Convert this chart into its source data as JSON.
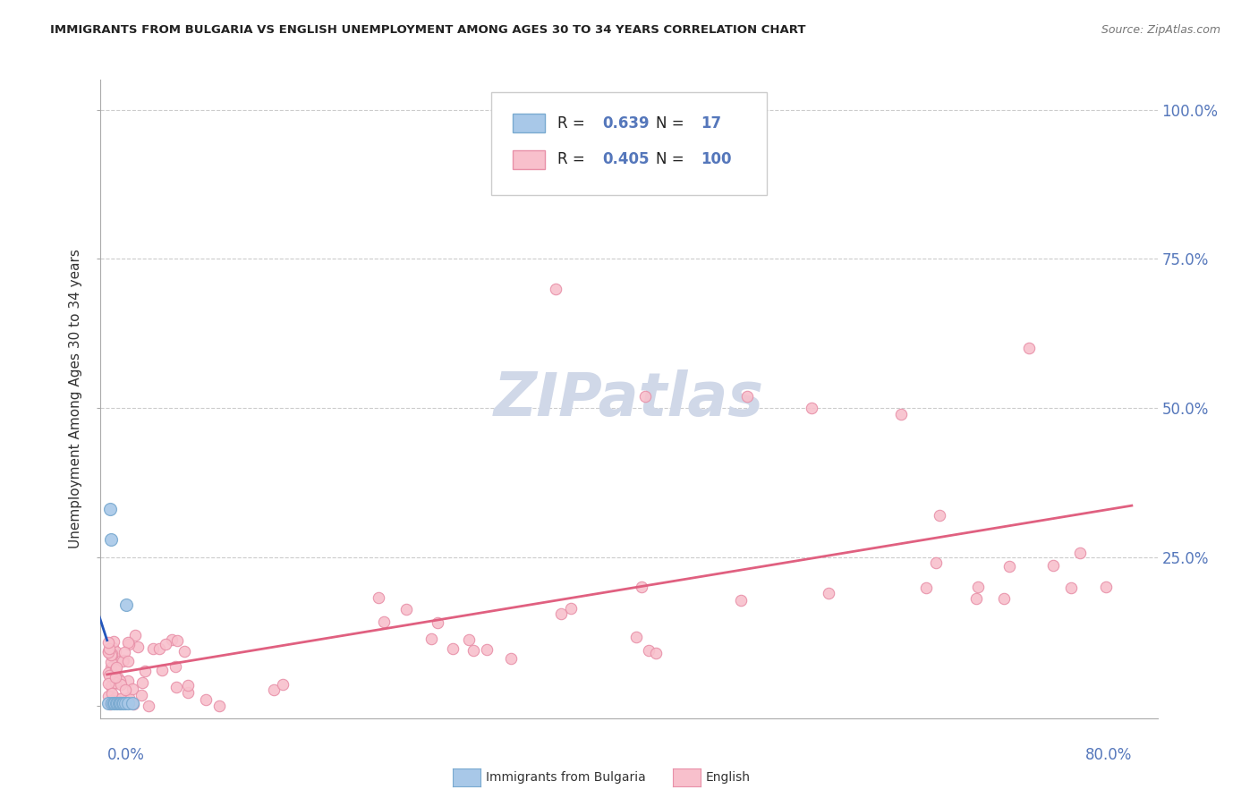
{
  "title": "IMMIGRANTS FROM BULGARIA VS ENGLISH UNEMPLOYMENT AMONG AGES 30 TO 34 YEARS CORRELATION CHART",
  "source": "Source: ZipAtlas.com",
  "ylabel": "Unemployment Among Ages 30 to 34 years",
  "ytick_labels": [
    "",
    "25.0%",
    "50.0%",
    "75.0%",
    "100.0%"
  ],
  "ytick_vals": [
    0.0,
    0.25,
    0.5,
    0.75,
    1.0
  ],
  "xlim": [
    0.0,
    0.8
  ],
  "ylim": [
    0.0,
    1.05
  ],
  "legend_R1": "0.639",
  "legend_N1": "17",
  "legend_R2": "0.405",
  "legend_N2": "100",
  "bulgaria_color": "#a8c8e8",
  "bulgaria_edge_color": "#7aaad0",
  "bulgaria_trend_color": "#2255bb",
  "english_color": "#f8c0cc",
  "english_edge_color": "#e890a8",
  "english_trend_color": "#e06080",
  "grid_color": "#cccccc",
  "axis_color": "#aaaaaa",
  "tick_label_color": "#5577bb",
  "watermark_color": "#d0d8e8",
  "bg_color": "#ffffff",
  "legend_box_color": "#ffffff",
  "legend_border_color": "#cccccc",
  "title_color": "#222222",
  "source_color": "#777777",
  "ylabel_color": "#333333"
}
